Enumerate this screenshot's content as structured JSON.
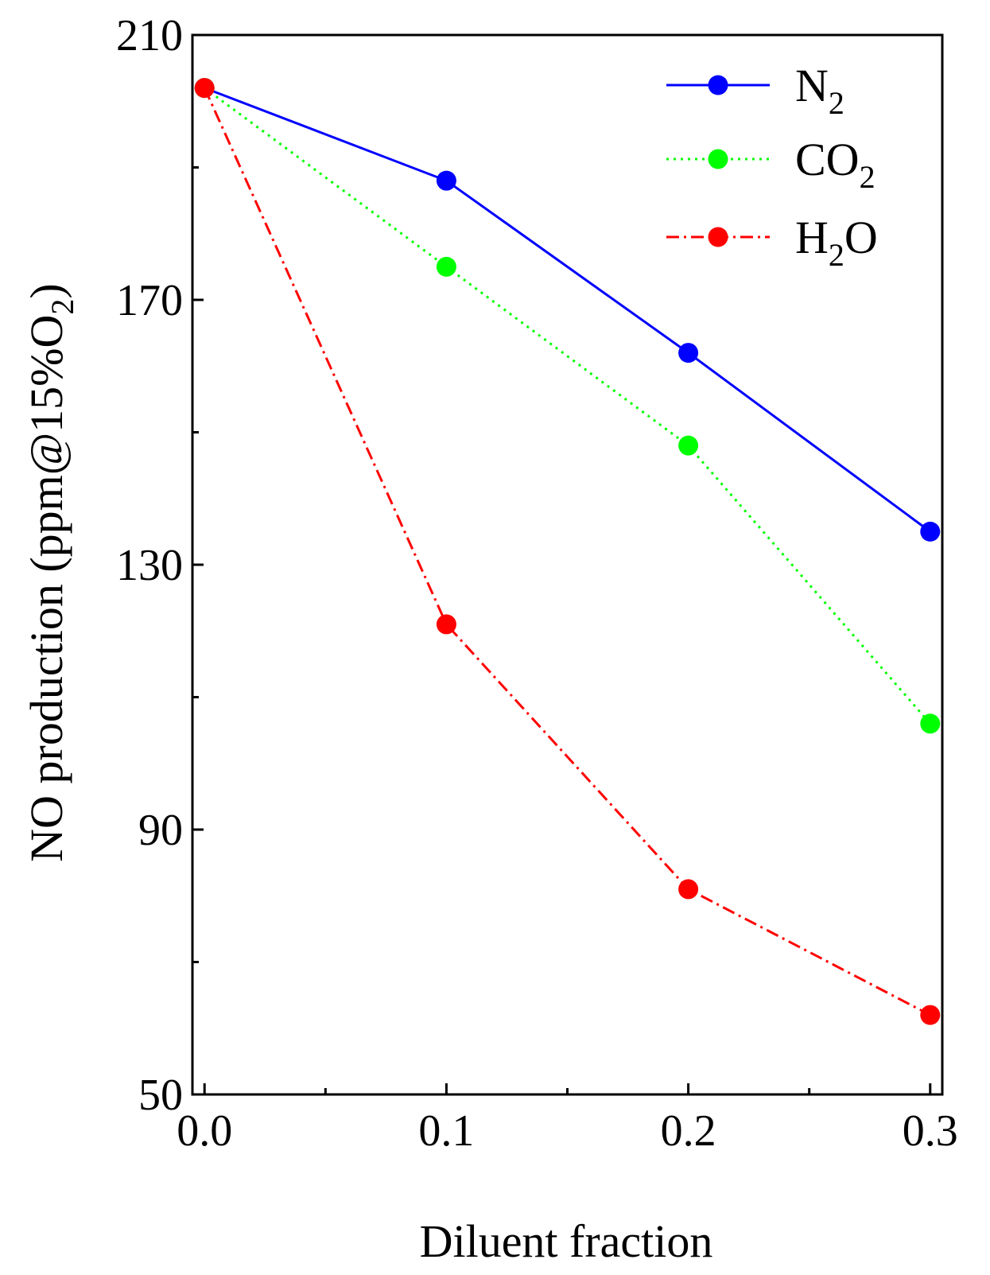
{
  "chart_data": {
    "type": "line",
    "title": "",
    "xlabel": "Diluent fraction",
    "ylabel": {
      "main": "NO production (ppm@15%O",
      "subscript": "2",
      "close": ")"
    },
    "x": [
      0.0,
      0.1,
      0.2,
      0.3
    ],
    "xlim": [
      -0.005,
      0.305
    ],
    "ylim": [
      50,
      210
    ],
    "x_ticks": [
      0.0,
      0.1,
      0.2,
      0.3
    ],
    "x_tick_labels": [
      "0.0",
      "0.1",
      "0.2",
      "0.3"
    ],
    "x_minor_ticks": [
      0.05,
      0.15,
      0.25
    ],
    "y_ticks": [
      50,
      90,
      130,
      170,
      210
    ],
    "y_tick_labels": [
      "50",
      "90",
      "130",
      "170",
      "210"
    ],
    "y_minor_ticks": [
      70,
      110,
      150,
      190
    ],
    "grid": false,
    "legend_position": "top-right",
    "series": [
      {
        "name": "N2",
        "label_main": "N",
        "label_sub": "2",
        "label_tail": "",
        "values": [
          202,
          188,
          162,
          135
        ],
        "color": "#0000ff",
        "line_style": "solid"
      },
      {
        "name": "CO2",
        "label_main": "CO",
        "label_sub": "2",
        "label_tail": "",
        "values": [
          202,
          175,
          148,
          106
        ],
        "color": "#00ff00",
        "line_style": "dotted"
      },
      {
        "name": "H2O",
        "label_main": "H",
        "label_sub": "2",
        "label_tail": "O",
        "values": [
          202,
          121,
          81,
          62
        ],
        "color": "#ff0000",
        "line_style": "dashdot"
      }
    ]
  }
}
